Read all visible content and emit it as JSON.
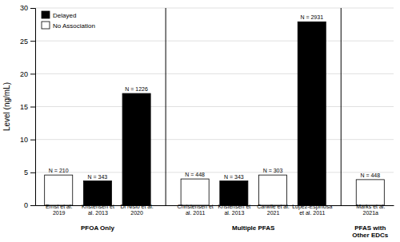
{
  "chart_data": {
    "type": "bar",
    "categories": [
      "Ernst et al.\n2019",
      "Kristensen et\nal. 2013",
      "Di Nisio et al.\n2020",
      "Christensen et\nal. 2011",
      "Kristensen et\nal. 2013",
      "Carwile et al.\n2021",
      "Lopez-Espinosa\net al. 2011",
      "Marks et al.\n2021a"
    ],
    "series": [
      {
        "name": "Delayed",
        "color": "black",
        "values": [
          null,
          3.7,
          17.0,
          null,
          3.7,
          null,
          27.9,
          null
        ]
      },
      {
        "name": "No Association",
        "color": "white",
        "values": [
          4.6,
          null,
          null,
          4.0,
          null,
          4.6,
          null,
          3.9
        ]
      }
    ],
    "stacked": true,
    "annotations": [
      "N = 210",
      "N = 343",
      "N = 1226",
      "N = 448",
      "N = 343",
      "N = 303",
      "N = 2931",
      "N = 448"
    ],
    "groups": [
      0,
      0,
      0,
      1,
      1,
      1,
      1,
      2
    ],
    "group_labels": [
      "PFOA Only",
      "Multiple PFAS",
      "PFAS with\nOther EDCs"
    ],
    "y_label": "Level (ng/mL)",
    "ylim": [
      0,
      30
    ],
    "yticks": [
      0,
      5,
      10,
      15,
      20,
      25,
      30
    ],
    "grid": true,
    "legend": "upper left"
  }
}
